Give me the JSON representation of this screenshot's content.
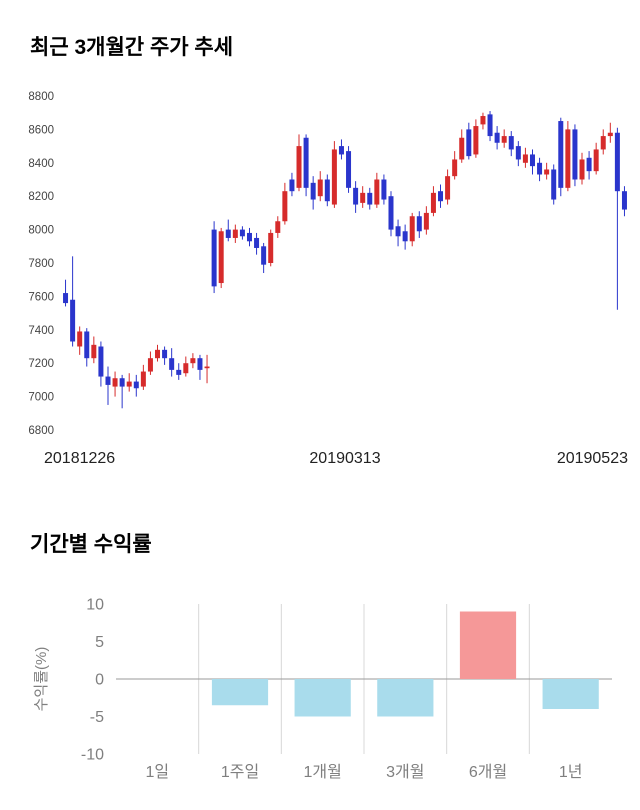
{
  "price_chart": {
    "title": "최근 3개월간 주가 추세"
  },
  "returns_chart": {
    "title": "기간별 수익률",
    "ylabel": "수익률(%)"
  },
  "chart_data": [
    {
      "type": "candlestick",
      "title": "최근 3개월간 주가 추세",
      "ylim": [
        6800,
        8800
      ],
      "y_ticks": [
        8800,
        8600,
        8400,
        8200,
        8000,
        7800,
        7600,
        7400,
        7200,
        7000,
        6800
      ],
      "x_tick_labels": [
        "20181226",
        "20190313",
        "20190523"
      ],
      "up_color": "#d62b2b",
      "down_color": "#2a35cc",
      "candles_ohlc": [
        [
          7620,
          7700,
          7540,
          7560
        ],
        [
          7580,
          7840,
          7300,
          7330
        ],
        [
          7300,
          7420,
          7250,
          7390
        ],
        [
          7390,
          7410,
          7180,
          7230
        ],
        [
          7230,
          7360,
          7200,
          7310
        ],
        [
          7300,
          7330,
          7060,
          7120
        ],
        [
          7120,
          7180,
          6950,
          7070
        ],
        [
          7060,
          7150,
          7000,
          7110
        ],
        [
          7110,
          7130,
          6930,
          7060
        ],
        [
          7060,
          7140,
          7030,
          7090
        ],
        [
          7090,
          7130,
          7000,
          7050
        ],
        [
          7060,
          7190,
          7040,
          7150
        ],
        [
          7150,
          7270,
          7130,
          7230
        ],
        [
          7230,
          7310,
          7210,
          7280
        ],
        [
          7280,
          7300,
          7190,
          7230
        ],
        [
          7230,
          7290,
          7120,
          7160
        ],
        [
          7160,
          7200,
          7100,
          7130
        ],
        [
          7140,
          7240,
          7120,
          7200
        ],
        [
          7200,
          7260,
          7170,
          7230
        ],
        [
          7230,
          7250,
          7100,
          7160
        ],
        [
          7170,
          7250,
          7080,
          7180
        ],
        [
          8000,
          8050,
          7620,
          7660
        ],
        [
          7680,
          8010,
          7650,
          7990
        ],
        [
          8000,
          8060,
          7930,
          7950
        ],
        [
          7950,
          8030,
          7920,
          8000
        ],
        [
          8000,
          8020,
          7940,
          7960
        ],
        [
          7980,
          8010,
          7900,
          7930
        ],
        [
          7950,
          7980,
          7850,
          7890
        ],
        [
          7900,
          7920,
          7740,
          7790
        ],
        [
          7800,
          8000,
          7780,
          7980
        ],
        [
          7980,
          8080,
          7950,
          8050
        ],
        [
          8050,
          8280,
          8030,
          8230
        ],
        [
          8300,
          8340,
          8200,
          8230
        ],
        [
          8250,
          8570,
          8230,
          8500
        ],
        [
          8550,
          8570,
          8200,
          8250
        ],
        [
          8280,
          8320,
          8120,
          8180
        ],
        [
          8200,
          8350,
          8170,
          8300
        ],
        [
          8300,
          8330,
          8140,
          8170
        ],
        [
          8150,
          8530,
          8130,
          8480
        ],
        [
          8500,
          8540,
          8420,
          8450
        ],
        [
          8470,
          8500,
          8220,
          8250
        ],
        [
          8250,
          8290,
          8100,
          8150
        ],
        [
          8160,
          8260,
          8130,
          8220
        ],
        [
          8220,
          8250,
          8120,
          8150
        ],
        [
          8150,
          8340,
          8130,
          8300
        ],
        [
          8300,
          8330,
          8150,
          8180
        ],
        [
          8200,
          8230,
          7960,
          8000
        ],
        [
          8020,
          8060,
          7900,
          7960
        ],
        [
          7990,
          8030,
          7880,
          7930
        ],
        [
          7930,
          8100,
          7900,
          8080
        ],
        [
          8080,
          8110,
          7950,
          7990
        ],
        [
          8000,
          8140,
          7970,
          8100
        ],
        [
          8100,
          8260,
          8080,
          8220
        ],
        [
          8230,
          8270,
          8130,
          8170
        ],
        [
          8180,
          8360,
          8150,
          8320
        ],
        [
          8320,
          8470,
          8300,
          8420
        ],
        [
          8420,
          8600,
          8400,
          8550
        ],
        [
          8600,
          8640,
          8420,
          8440
        ],
        [
          8450,
          8660,
          8430,
          8620
        ],
        [
          8630,
          8700,
          8600,
          8680
        ],
        [
          8690,
          8710,
          8530,
          8560
        ],
        [
          8580,
          8620,
          8480,
          8520
        ],
        [
          8520,
          8600,
          8490,
          8560
        ],
        [
          8560,
          8590,
          8440,
          8480
        ],
        [
          8500,
          8530,
          8380,
          8420
        ],
        [
          8400,
          8490,
          8370,
          8450
        ],
        [
          8450,
          8480,
          8330,
          8380
        ],
        [
          8400,
          8430,
          8290,
          8330
        ],
        [
          8330,
          8400,
          8300,
          8360
        ],
        [
          8360,
          8390,
          8150,
          8180
        ],
        [
          8650,
          8670,
          8200,
          8250
        ],
        [
          8250,
          8650,
          8230,
          8600
        ],
        [
          8600,
          8630,
          8260,
          8300
        ],
        [
          8300,
          8460,
          8270,
          8420
        ],
        [
          8430,
          8470,
          8300,
          8350
        ],
        [
          8350,
          8520,
          8330,
          8480
        ],
        [
          8480,
          8600,
          8450,
          8560
        ],
        [
          8560,
          8640,
          8520,
          8580
        ],
        [
          8580,
          8610,
          7520,
          8230
        ],
        [
          8230,
          8260,
          8080,
          8120
        ]
      ]
    },
    {
      "type": "bar",
      "title": "기간별 수익률",
      "ylabel": "수익률(%)",
      "categories": [
        "1일",
        "1주일",
        "1개월",
        "3개월",
        "6개월",
        "1년"
      ],
      "values": [
        0,
        -3.5,
        -5,
        -5,
        9,
        -4
      ],
      "ylim": [
        -10,
        10
      ],
      "y_ticks": [
        10,
        5,
        0,
        -5,
        -10
      ],
      "positive_color": "#f59898",
      "negative_color": "#a9dcec",
      "grid": "vertical-between-categories",
      "zero_line_color": "#9a9a9a",
      "grid_color": "#d8d8d8",
      "axis_text_color": "#7f7f7f"
    }
  ]
}
